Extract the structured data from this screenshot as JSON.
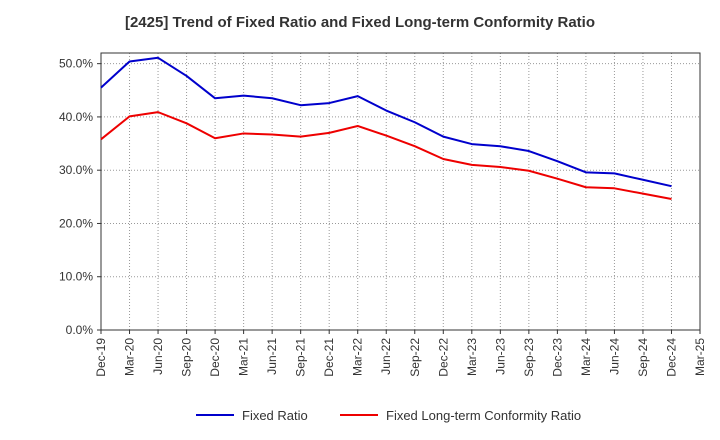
{
  "chart_data": {
    "type": "line",
    "title": "[2425]  Trend of Fixed Ratio and Fixed Long-term Conformity Ratio",
    "xlabel": "",
    "ylabel": "",
    "ylim": [
      0,
      52
    ],
    "yticks": [
      "0.0%",
      "10.0%",
      "20.0%",
      "30.0%",
      "40.0%",
      "50.0%"
    ],
    "ytick_values": [
      0,
      10,
      20,
      30,
      40,
      50
    ],
    "x": [
      "Dec-19",
      "Mar-20",
      "Jun-20",
      "Sep-20",
      "Dec-20",
      "Mar-21",
      "Jun-21",
      "Sep-21",
      "Dec-21",
      "Mar-22",
      "Jun-22",
      "Sep-22",
      "Dec-22",
      "Mar-23",
      "Jun-23",
      "Sep-23",
      "Dec-23",
      "Mar-24",
      "Jun-24",
      "Sep-24",
      "Dec-24",
      "Mar-25"
    ],
    "grid": true,
    "legend_position": "bottom",
    "series": [
      {
        "name": "Fixed Ratio",
        "color": "#0000cc",
        "values": [
          45.5,
          50.4,
          51.1,
          47.7,
          43.5,
          44.0,
          43.5,
          42.2,
          42.6,
          43.9,
          41.2,
          39.0,
          36.3,
          34.9,
          34.5,
          33.6,
          31.7,
          29.6,
          29.4,
          28.2,
          27.0,
          null
        ]
      },
      {
        "name": "Fixed Long-term Conformity Ratio",
        "color": "#ee0000",
        "values": [
          35.8,
          40.1,
          40.9,
          38.8,
          36.0,
          36.9,
          36.7,
          36.3,
          37.0,
          38.3,
          36.5,
          34.5,
          32.1,
          31.0,
          30.6,
          29.9,
          28.4,
          26.8,
          26.6,
          25.6,
          24.6,
          null
        ]
      }
    ]
  }
}
